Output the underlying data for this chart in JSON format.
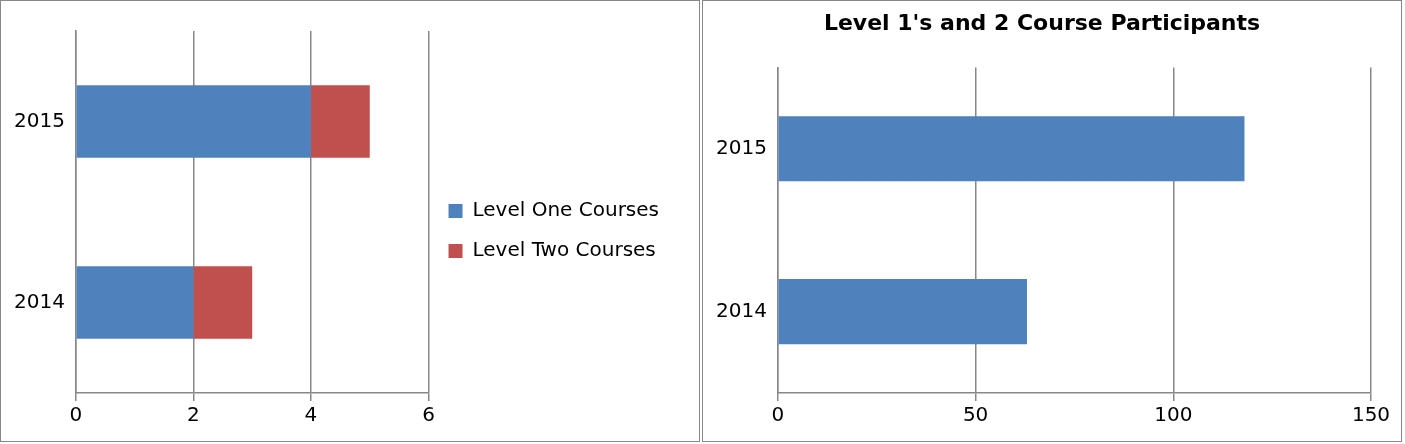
{
  "chart_data": [
    {
      "type": "bar",
      "orientation": "horizontal",
      "stacked": true,
      "categories": [
        "2015",
        "2014"
      ],
      "series": [
        {
          "name": "Level One Courses",
          "color": "#4f81bd",
          "values": [
            4,
            2
          ]
        },
        {
          "name": "Level Two Courses",
          "color": "#c0504d",
          "values": [
            1,
            1
          ]
        }
      ],
      "xlim": [
        0,
        6
      ],
      "xticks": [
        0,
        2,
        4,
        6
      ],
      "grid": "x",
      "legend": "right"
    },
    {
      "type": "bar",
      "orientation": "horizontal",
      "title": "Level 1's and 2 Course Participants",
      "categories": [
        "2015",
        "2014"
      ],
      "series": [
        {
          "color": "#4f81bd",
          "values": [
            118,
            63
          ]
        }
      ],
      "xlim": [
        0,
        150
      ],
      "xticks": [
        0,
        50,
        100,
        150
      ],
      "grid": "x",
      "legend": false
    }
  ]
}
